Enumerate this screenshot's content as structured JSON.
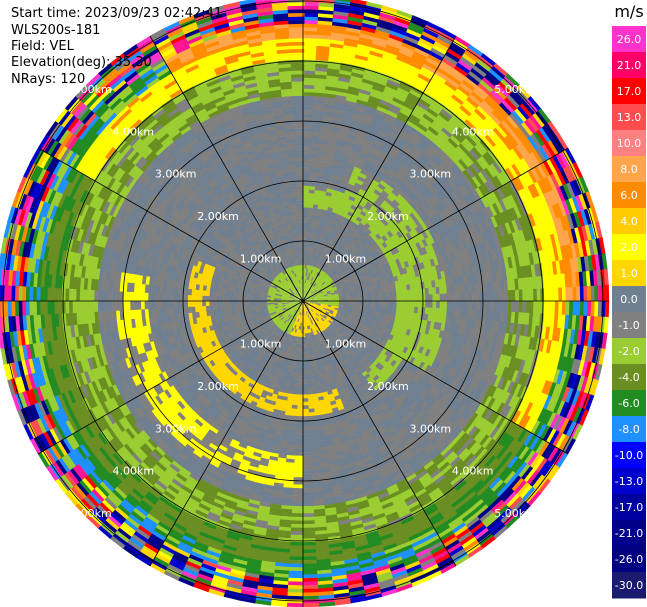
{
  "header": {
    "start_time": "Start time: 2023/09/23 02:42:41",
    "instrument": "WLS200s-181",
    "field": "Field: VEL",
    "elevation": "Elevation(deg): 35.30",
    "nrays": "NRays: 120"
  },
  "colorbar": {
    "unit": "m/s",
    "ticks": [
      "26.0",
      "21.0",
      "17.0",
      "13.0",
      "10.0",
      "8.0",
      "6.0",
      "4.0",
      "2.0",
      "1.0",
      "0.0",
      "-1.0",
      "-2.0",
      "-4.0",
      "-6.0",
      "-8.0",
      "-10.0",
      "-13.0",
      "-17.0",
      "-21.0",
      "-26.0",
      "-30.0"
    ],
    "colors": [
      "#ff33cc",
      "#ff0066",
      "#ff0000",
      "#ff4d4d",
      "#ff8080",
      "#ffa64d",
      "#ff8c00",
      "#ffcc00",
      "#ffff00",
      "#ffd700",
      "#708090",
      "#808080",
      "#9acd32",
      "#6b8e23",
      "#228b22",
      "#1e90ff",
      "#0000ff",
      "#0000cd",
      "#0000a0",
      "#00008b",
      "#000080",
      "#1a1a6e"
    ]
  },
  "chart_data": {
    "type": "heatmap",
    "projection": "polar (PPI)",
    "field": "VEL",
    "unit": "m/s",
    "range_rings_km": [
      1.0,
      2.0,
      3.0,
      4.0,
      5.0
    ],
    "ring_labels": [
      "1.00km",
      "2.00km",
      "3.00km",
      "4.00km",
      "5.00km"
    ],
    "spokes_deg": [
      0,
      30,
      60,
      90,
      120,
      150,
      180,
      210,
      240,
      270,
      300,
      330
    ],
    "nrays": 120,
    "vmin": -30.0,
    "vmax": 26.0,
    "pattern": {
      "inner_disc_km": 0.6,
      "yellow_band_km": [
        1.55,
        1.95
      ],
      "gray_band_km": [
        1.95,
        3.4
      ],
      "green_band_km": [
        3.4,
        4.0
      ],
      "yellow_outer_km": [
        4.0,
        4.4
      ],
      "noise_start_km": 4.6
    }
  }
}
